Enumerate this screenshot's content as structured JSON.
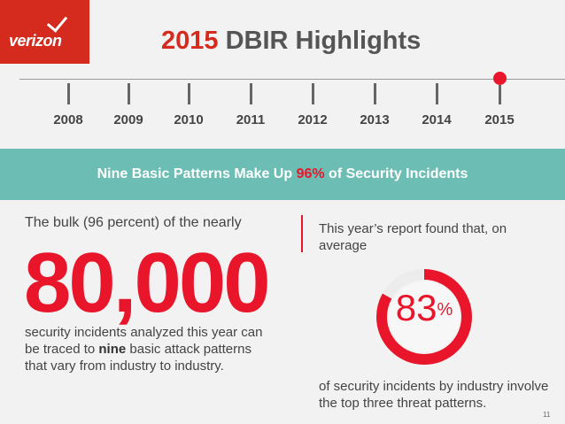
{
  "logo": {
    "text": "verizon"
  },
  "header": {
    "title_year": "2015",
    "title_rest": "DBIR Highlights"
  },
  "timeline": {
    "years": [
      "2008",
      "2009",
      "2010",
      "2011",
      "2012",
      "2013",
      "2014",
      "2015"
    ],
    "selected": "2015",
    "accent_color": "#e8152b"
  },
  "band": {
    "text_before": "Nine Basic Patterns Make Up ",
    "highlight": "96%",
    "text_after": " of Security Incidents",
    "background": "#6cbdb3"
  },
  "left": {
    "intro": "The bulk (96 percent) of the nearly",
    "big_number": "80,000",
    "body_before": "security incidents analyzed this year can be traced to ",
    "body_bold": "nine",
    "body_after": " basic attack patterns that vary from industry to industry."
  },
  "right": {
    "intro": "This year’s report found that, on average",
    "percent_value": "83",
    "percent_sign": "%",
    "percent_fraction": 0.83,
    "body": "of security incidents by industry involve the top three threat patterns."
  },
  "page_number": "11"
}
